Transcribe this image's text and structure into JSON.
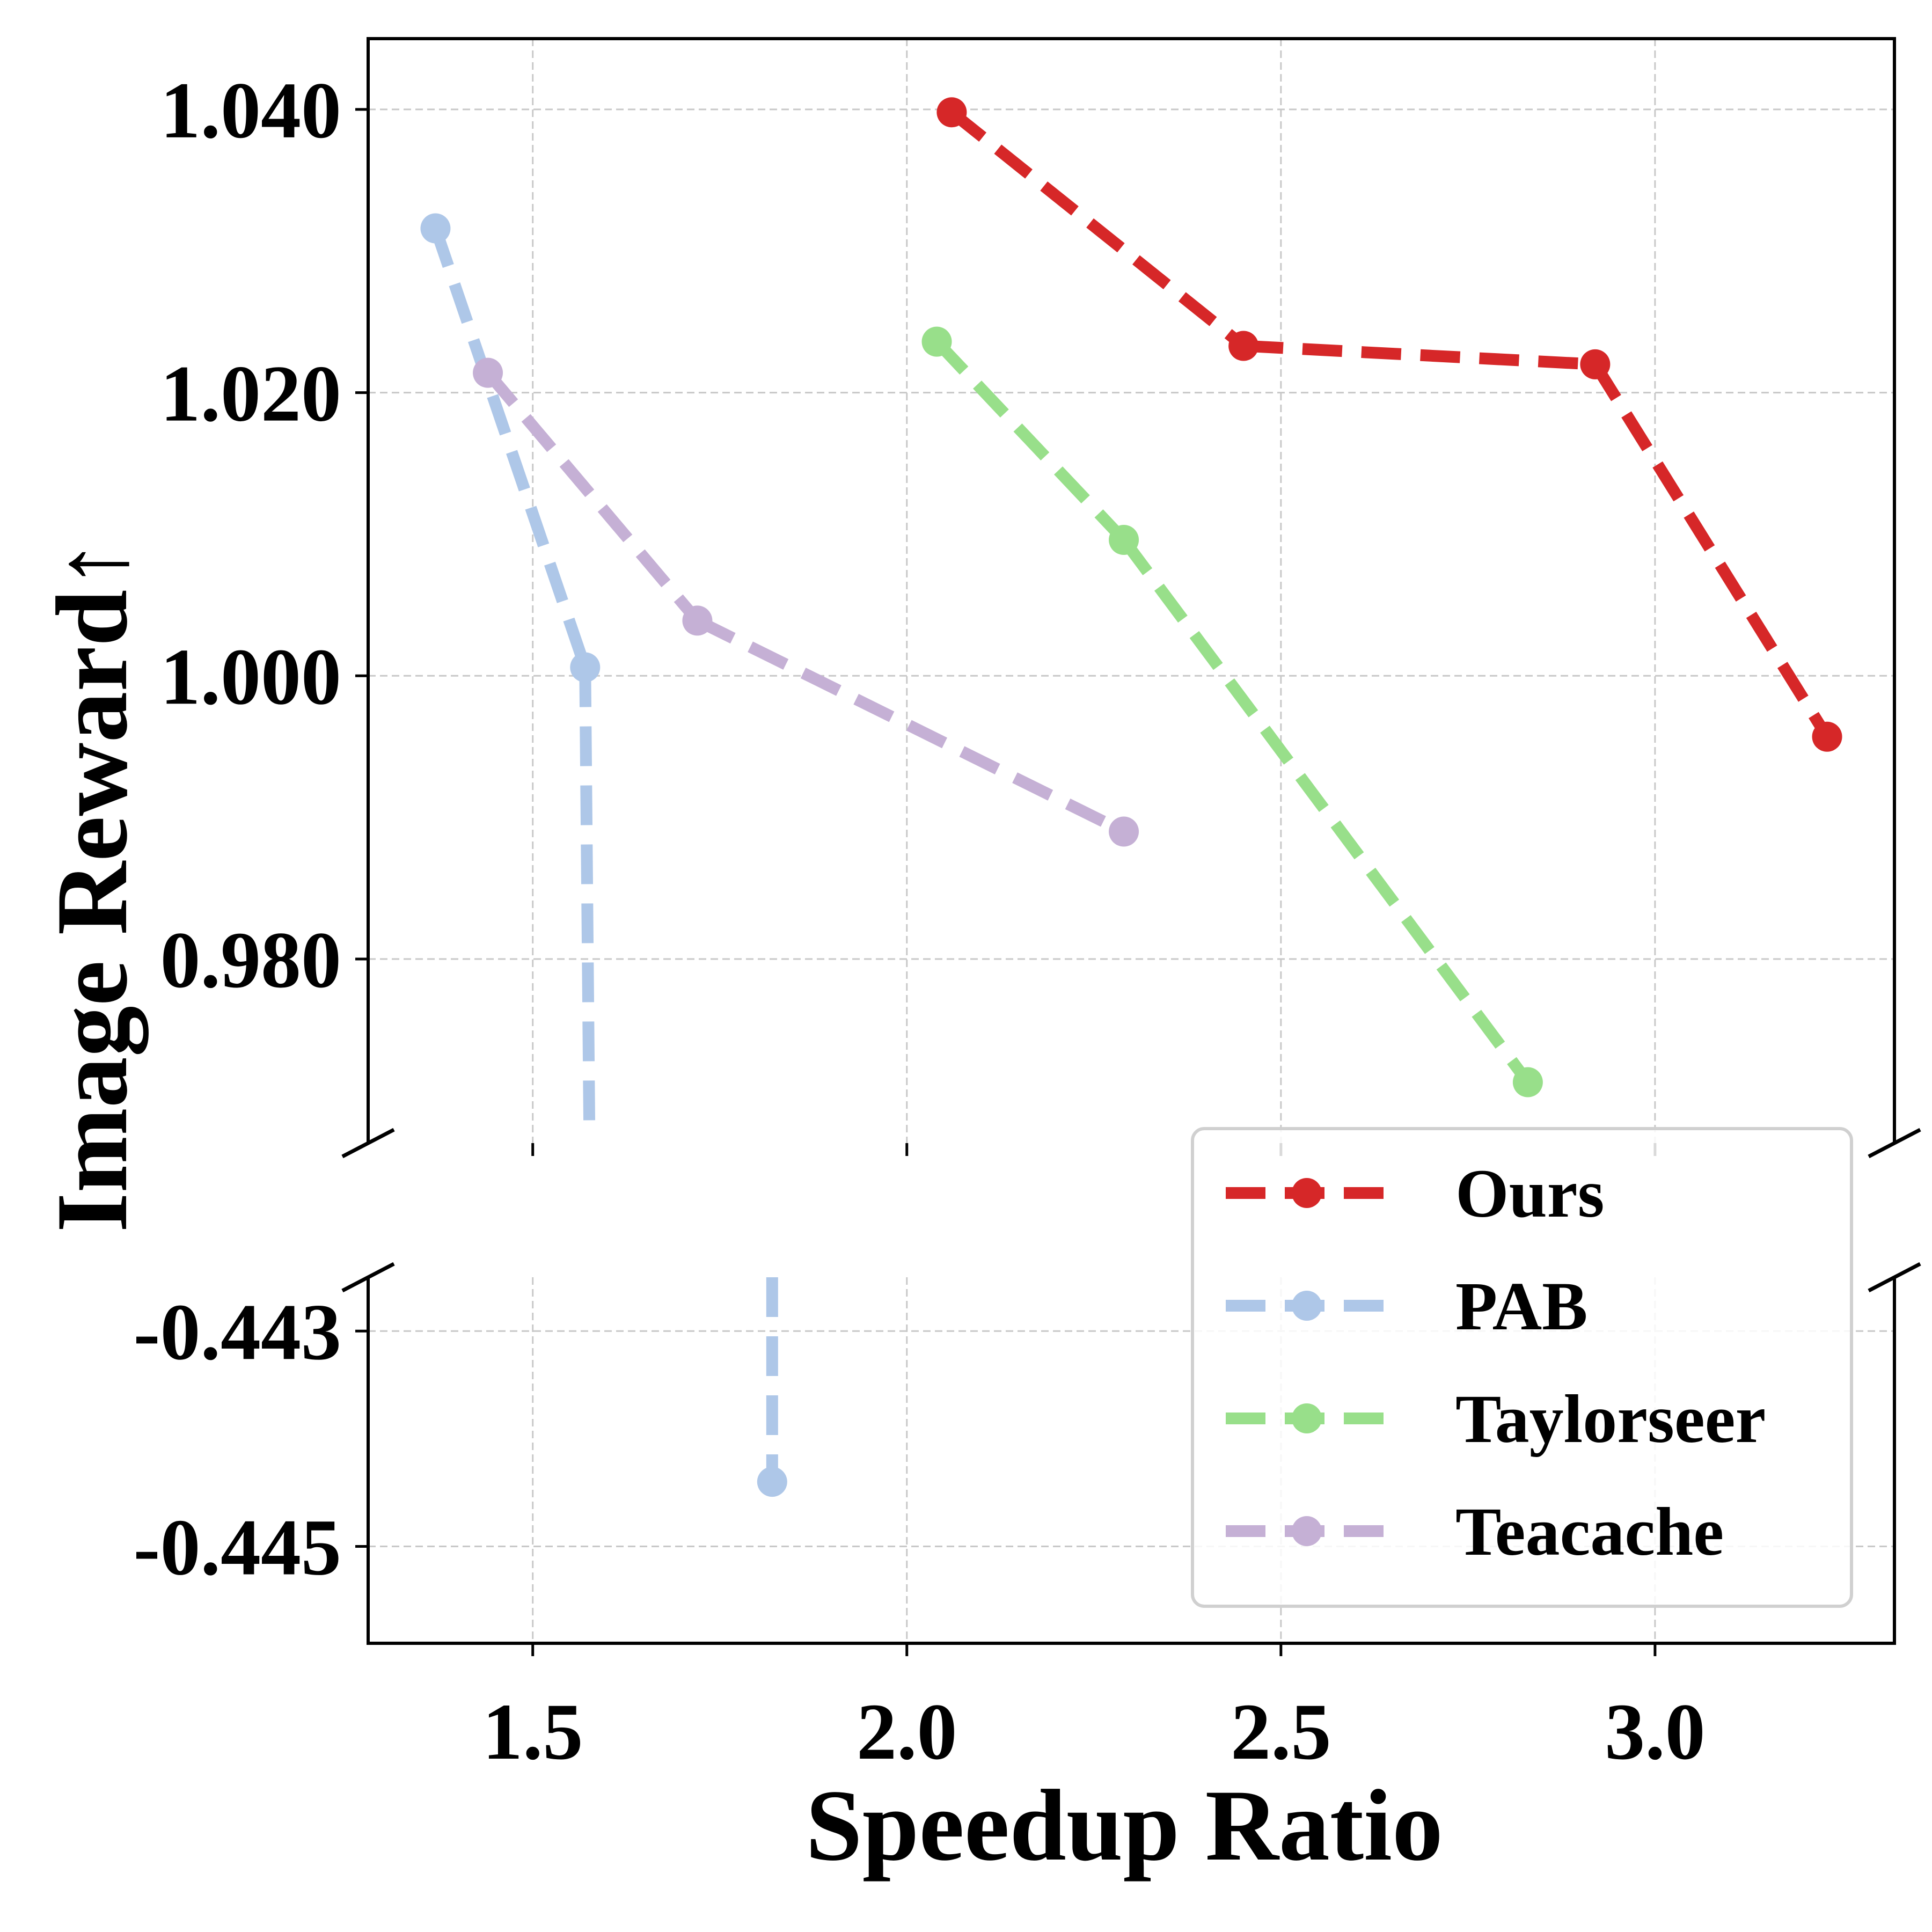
{
  "chart_data": {
    "type": "line",
    "xlabel": "Speedup Ratio",
    "ylabel": "Image Reward↑",
    "xlim": [
      1.28,
      3.32
    ],
    "x_ticks": [
      1.5,
      2.0,
      2.5,
      3.0
    ],
    "x_tick_labels": [
      "1.5",
      "2.0",
      "2.5",
      "3.0"
    ],
    "broken_y_axis": true,
    "upper_panel": {
      "ylim": [
        0.967,
        1.045
      ],
      "y_ticks": [
        0.98,
        1.0,
        1.02,
        1.04
      ],
      "y_tick_labels": [
        "0.980",
        "1.000",
        "1.020",
        "1.040"
      ]
    },
    "lower_panel": {
      "ylim": [
        -0.4459,
        -0.4425
      ],
      "y_ticks": [
        -0.443,
        -0.445
      ],
      "y_tick_labels": [
        "-0.443",
        "-0.445"
      ]
    },
    "grid": true,
    "legend_position": "lower-right",
    "series": [
      {
        "name": "Ours",
        "color": "#d62728",
        "x": [
          2.06,
          2.45,
          2.92,
          3.23
        ],
        "y": [
          1.0398,
          1.0233,
          1.022,
          0.9957
        ]
      },
      {
        "name": "PAB",
        "color": "#aec7e8",
        "x": [
          1.37,
          1.57,
          1.82
        ],
        "y": [
          1.0316,
          1.0006,
          -0.4444
        ]
      },
      {
        "name": "Taylorseer",
        "color": "#98df8a",
        "x": [
          2.04,
          2.29,
          2.83
        ],
        "y": [
          1.0236,
          1.0096,
          0.9713
        ]
      },
      {
        "name": "Teacache",
        "color": "#c5b0d5",
        "x": [
          1.44,
          1.72,
          2.29
        ],
        "y": [
          1.0214,
          1.0039,
          0.989
        ]
      }
    ]
  }
}
